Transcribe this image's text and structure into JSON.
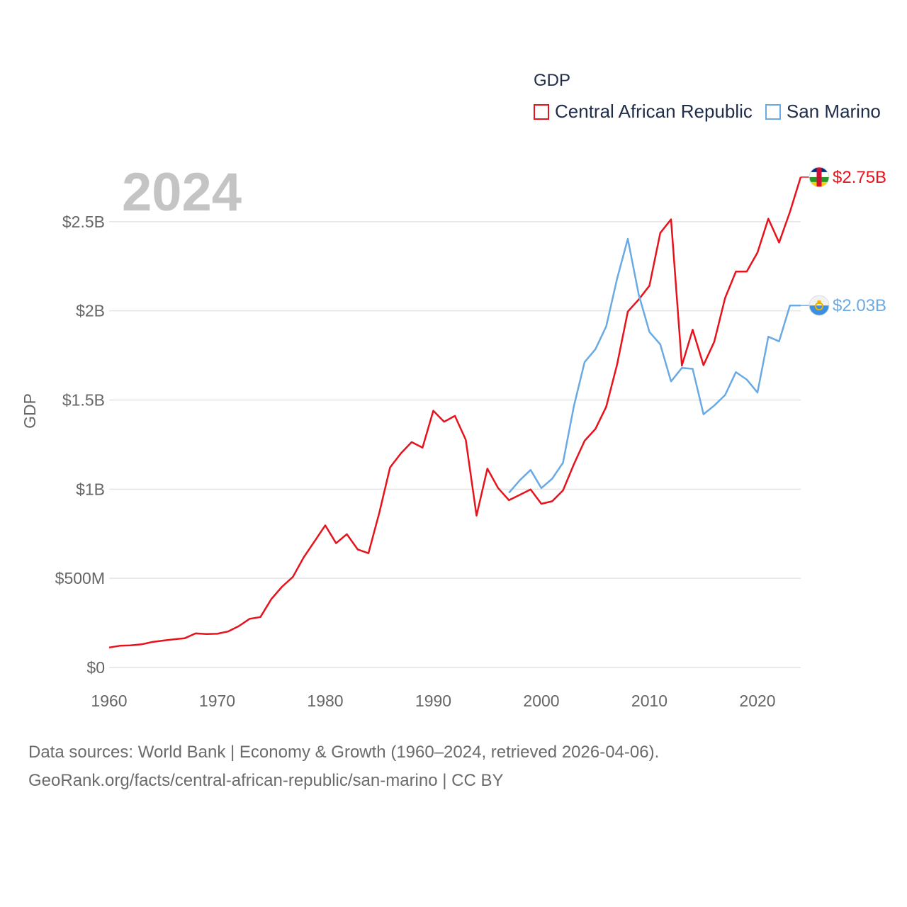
{
  "year_label": "2024",
  "legend": {
    "title": "GDP",
    "items": [
      {
        "label": "Central African Republic",
        "color": "#e8121c"
      },
      {
        "label": "San Marino",
        "color": "#6aaae4"
      }
    ]
  },
  "footer": {
    "line1": "Data sources: World Bank | Economy & Growth (1960–2024, retrieved 2026-04-06).",
    "line2": "GeoRank.org/facts/central-african-republic/san-marino | CC BY"
  },
  "chart_data": {
    "type": "line",
    "title": "GDP",
    "xlabel": "",
    "ylabel": "GDP",
    "xlim": [
      1960,
      2024
    ],
    "ylim": [
      0,
      3000000000
    ],
    "grid": true,
    "legend_position": "top-right",
    "x_ticks": [
      {
        "value": 1960,
        "label": "1960"
      },
      {
        "value": 1970,
        "label": "1970"
      },
      {
        "value": 1980,
        "label": "1980"
      },
      {
        "value": 1990,
        "label": "1990"
      },
      {
        "value": 2000,
        "label": "2000"
      },
      {
        "value": 2010,
        "label": "2010"
      },
      {
        "value": 2020,
        "label": "2020"
      }
    ],
    "y_ticks": [
      {
        "value": 0,
        "label": "$0"
      },
      {
        "value": 500000000,
        "label": "$500M"
      },
      {
        "value": 1000000000,
        "label": "$1B"
      },
      {
        "value": 1500000000,
        "label": "$1.5B"
      },
      {
        "value": 2000000000,
        "label": "$2B"
      },
      {
        "value": 2500000000,
        "label": "$2.5B"
      }
    ],
    "series": [
      {
        "name": "Central African Republic",
        "color": "#e8121c",
        "end_label": "$2.75B",
        "flag": "central-african-republic-flag-icon",
        "points": [
          [
            1960,
            112000000
          ],
          [
            1961,
            122000000
          ],
          [
            1962,
            124000000
          ],
          [
            1963,
            130000000
          ],
          [
            1964,
            143000000
          ],
          [
            1965,
            151000000
          ],
          [
            1966,
            158000000
          ],
          [
            1967,
            164000000
          ],
          [
            1968,
            191000000
          ],
          [
            1969,
            188000000
          ],
          [
            1970,
            189000000
          ],
          [
            1971,
            202000000
          ],
          [
            1972,
            232000000
          ],
          [
            1973,
            273000000
          ],
          [
            1974,
            283000000
          ],
          [
            1975,
            383000000
          ],
          [
            1976,
            453000000
          ],
          [
            1977,
            508000000
          ],
          [
            1978,
            617000000
          ],
          [
            1979,
            707000000
          ],
          [
            1980,
            797000000
          ],
          [
            1981,
            697000000
          ],
          [
            1982,
            748000000
          ],
          [
            1983,
            662000000
          ],
          [
            1984,
            641000000
          ],
          [
            1985,
            868000000
          ],
          [
            1986,
            1122000000
          ],
          [
            1987,
            1201000000
          ],
          [
            1988,
            1264000000
          ],
          [
            1989,
            1233000000
          ],
          [
            1990,
            1440000000
          ],
          [
            1991,
            1378000000
          ],
          [
            1992,
            1411000000
          ],
          [
            1993,
            1277000000
          ],
          [
            1994,
            852000000
          ],
          [
            1995,
            1115000000
          ],
          [
            1996,
            1006000000
          ],
          [
            1997,
            938000000
          ],
          [
            1998,
            968000000
          ],
          [
            1999,
            998000000
          ],
          [
            2000,
            918000000
          ],
          [
            2001,
            932000000
          ],
          [
            2002,
            993000000
          ],
          [
            2003,
            1139000000
          ],
          [
            2004,
            1271000000
          ],
          [
            2005,
            1338000000
          ],
          [
            2006,
            1462000000
          ],
          [
            2007,
            1698000000
          ],
          [
            2008,
            1996000000
          ],
          [
            2009,
            2063000000
          ],
          [
            2010,
            2141000000
          ],
          [
            2011,
            2437000000
          ],
          [
            2012,
            2513000000
          ],
          [
            2013,
            1693000000
          ],
          [
            2014,
            1894000000
          ],
          [
            2015,
            1695000000
          ],
          [
            2016,
            1827000000
          ],
          [
            2017,
            2072000000
          ],
          [
            2018,
            2220000000
          ],
          [
            2019,
            2220000000
          ],
          [
            2020,
            2327000000
          ],
          [
            2021,
            2517000000
          ],
          [
            2022,
            2383000000
          ],
          [
            2023,
            2555000000
          ],
          [
            2024,
            2750000000
          ]
        ]
      },
      {
        "name": "San Marino",
        "color": "#6aaae4",
        "end_label": "$2.03B",
        "flag": "san-marino-flag-icon",
        "points": [
          [
            1997,
            980000000
          ],
          [
            1998,
            1050000000
          ],
          [
            1999,
            1108000000
          ],
          [
            2000,
            1006000000
          ],
          [
            2001,
            1059000000
          ],
          [
            2002,
            1148000000
          ],
          [
            2003,
            1464000000
          ],
          [
            2004,
            1712000000
          ],
          [
            2005,
            1785000000
          ],
          [
            2006,
            1913000000
          ],
          [
            2007,
            2179000000
          ],
          [
            2008,
            2404000000
          ],
          [
            2009,
            2093000000
          ],
          [
            2010,
            1882000000
          ],
          [
            2011,
            1812000000
          ],
          [
            2012,
            1604000000
          ],
          [
            2013,
            1680000000
          ],
          [
            2014,
            1675000000
          ],
          [
            2015,
            1420000000
          ],
          [
            2016,
            1469000000
          ],
          [
            2017,
            1528000000
          ],
          [
            2018,
            1656000000
          ],
          [
            2019,
            1615000000
          ],
          [
            2020,
            1542000000
          ],
          [
            2021,
            1855000000
          ],
          [
            2022,
            1829000000
          ],
          [
            2023,
            2030000000
          ],
          [
            2024,
            2030000000
          ]
        ]
      }
    ]
  }
}
